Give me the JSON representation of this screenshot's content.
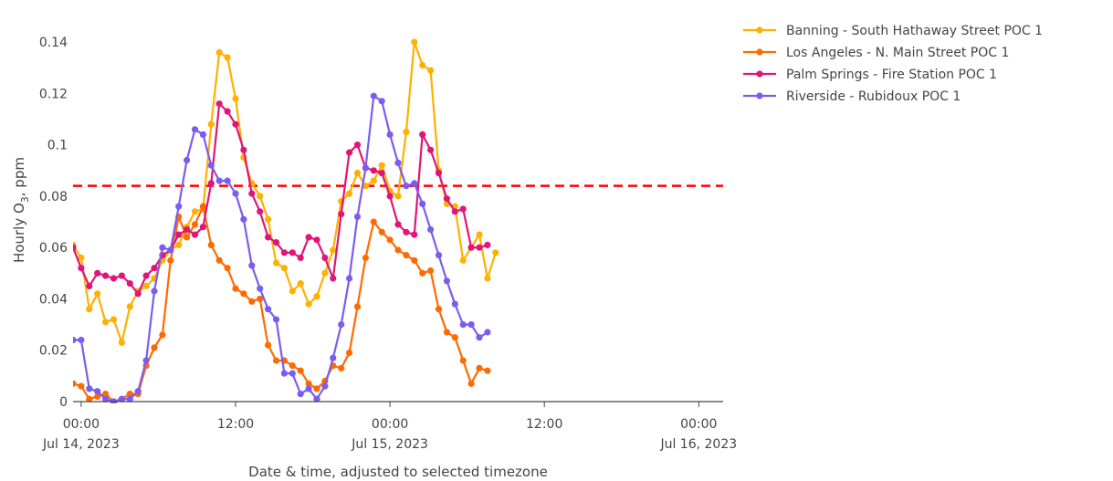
{
  "chart_data": {
    "type": "line",
    "xlabel": "Date & time, adjusted to selected timezone",
    "ylabel_main": "Hourly O",
    "ylabel_sub": "3",
    "ylabel_tail": ", ppm",
    "x_range": [
      -1,
      79
    ],
    "ylim": [
      0,
      0.15
    ],
    "y_ticks": [
      {
        "v": 0,
        "label": "0"
      },
      {
        "v": 0.02,
        "label": "0.02"
      },
      {
        "v": 0.04,
        "label": "0.04"
      },
      {
        "v": 0.06,
        "label": "0.06"
      },
      {
        "v": 0.08,
        "label": "0.08"
      },
      {
        "v": 0.1,
        "label": "0.1"
      },
      {
        "v": 0.12,
        "label": "0.12"
      },
      {
        "v": 0.14,
        "label": "0.14"
      }
    ],
    "x_ticks": [
      {
        "v": 0,
        "line1": "00:00",
        "line2": "Jul 14, 2023"
      },
      {
        "v": 19,
        "line1": "12:00",
        "line2": ""
      },
      {
        "v": 38,
        "line1": "00:00",
        "line2": "Jul 15, 2023"
      },
      {
        "v": 57,
        "line1": "12:00",
        "line2": ""
      },
      {
        "v": 76,
        "line1": "00:00",
        "line2": "Jul 16, 2023"
      }
    ],
    "threshold": {
      "value": 0.084,
      "color": "#ff0000"
    },
    "grid": false,
    "legend_position": "top-right",
    "series": [
      {
        "name": "Banning - South Hathaway Street POC 1",
        "color": "#ffb000",
        "x_start": -1,
        "values": [
          0.061,
          0.056,
          0.036,
          0.042,
          0.031,
          0.032,
          0.023,
          0.037,
          0.043,
          0.045,
          0.048,
          0.055,
          0.059,
          0.061,
          0.068,
          0.074,
          0.075,
          0.108,
          0.136,
          0.134,
          0.118,
          0.095,
          0.085,
          0.08,
          0.071,
          0.054,
          0.052,
          0.043,
          0.046,
          0.038,
          0.041,
          0.05,
          0.059,
          0.078,
          0.081,
          0.089,
          0.084,
          0.086,
          0.092,
          0.082,
          0.08,
          0.105,
          0.14,
          0.131,
          0.129,
          0.09,
          0.077,
          0.076,
          0.055,
          0.06,
          0.065,
          0.048,
          0.058
        ]
      },
      {
        "name": "Los Angeles - N. Main Street POC 1",
        "color": "#ff6a00",
        "x_start": -1,
        "values": [
          0.007,
          0.006,
          0.001,
          0.002,
          0.003,
          0.0,
          0.001,
          0.003,
          0.003,
          0.014,
          0.021,
          0.026,
          0.055,
          0.072,
          0.064,
          0.069,
          0.076,
          0.061,
          0.055,
          0.052,
          0.044,
          0.042,
          0.039,
          0.04,
          0.022,
          0.016,
          0.016,
          0.014,
          0.012,
          0.007,
          0.005,
          0.008,
          0.014,
          0.013,
          0.019,
          0.037,
          0.056,
          0.07,
          0.066,
          0.063,
          0.059,
          0.057,
          0.055,
          0.05,
          0.051,
          0.036,
          0.027,
          0.025,
          0.016,
          0.007,
          0.013,
          0.012
        ]
      },
      {
        "name": "Palm Springs - Fire Station POC 1",
        "color": "#e0157a",
        "x_start": -1,
        "values": [
          0.06,
          0.052,
          0.045,
          0.05,
          0.049,
          0.048,
          0.049,
          0.046,
          0.042,
          0.049,
          0.052,
          0.057,
          0.059,
          0.065,
          0.067,
          0.065,
          0.068,
          0.085,
          0.116,
          0.113,
          0.108,
          0.098,
          0.081,
          0.074,
          0.064,
          0.062,
          0.058,
          0.058,
          0.056,
          0.064,
          0.063,
          0.056,
          0.048,
          0.073,
          0.097,
          0.1,
          0.091,
          0.09,
          0.089,
          0.08,
          0.069,
          0.066,
          0.065,
          0.104,
          0.098,
          0.089,
          0.079,
          0.074,
          0.075,
          0.06,
          0.06,
          0.061
        ]
      },
      {
        "name": "Riverside - Rubidoux POC 1",
        "color": "#7b5cf0",
        "x_start": -1,
        "values": [
          0.024,
          0.024,
          0.005,
          0.004,
          0.001,
          0.0,
          0.001,
          0.001,
          0.004,
          0.016,
          0.043,
          0.06,
          0.059,
          0.076,
          0.094,
          0.106,
          0.104,
          0.092,
          0.086,
          0.086,
          0.081,
          0.071,
          0.053,
          0.044,
          0.036,
          0.032,
          0.011,
          0.011,
          0.003,
          0.005,
          0.001,
          0.006,
          0.017,
          0.03,
          0.048,
          0.072,
          0.091,
          0.119,
          0.117,
          0.104,
          0.093,
          0.084,
          0.085,
          0.077,
          0.067,
          0.057,
          0.047,
          0.038,
          0.03,
          0.03,
          0.025,
          0.027
        ]
      }
    ]
  }
}
